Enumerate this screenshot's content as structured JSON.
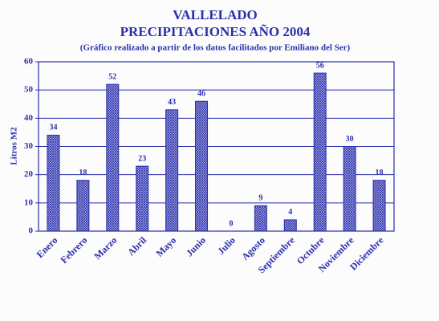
{
  "chart_data": {
    "type": "bar",
    "title": [
      "VALLELADO",
      "PRECIPITACIONES AÑO 2004"
    ],
    "subtitle": "(Gráfico realizado a partir de los datos facilitados por Emiliano del Ser)",
    "y_label": "Litros M2",
    "categories": [
      "Enero",
      "Febrero",
      "Marzo",
      "Abril",
      "Mayo",
      "Junio",
      "Julio",
      "Agosto",
      "Septiembre",
      "Octubre",
      "Noviembre",
      "Diciembre"
    ],
    "values": [
      34,
      18,
      52,
      23,
      43,
      46,
      0,
      9,
      4,
      56,
      30,
      18
    ],
    "color": "#2a2fa8",
    "ylim": [
      0,
      60
    ],
    "yticks": [
      0,
      10,
      20,
      30,
      40,
      50,
      60
    ],
    "grid": true
  }
}
